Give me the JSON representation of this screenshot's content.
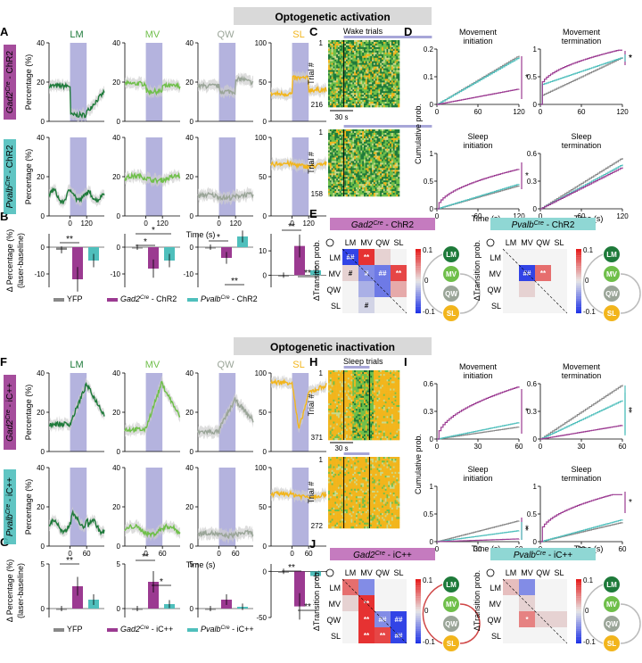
{
  "sections": {
    "activation": "Optogenetic activation",
    "inactivation": "Optogenetic inactivation"
  },
  "panel_letters": [
    "A",
    "B",
    "C",
    "D",
    "E",
    "F",
    "G",
    "H",
    "I",
    "J"
  ],
  "state_labels": [
    "LM",
    "MV",
    "QW",
    "SL"
  ],
  "colors": {
    "LM": "#1e7a3a",
    "MV": "#6fbf4a",
    "QW": "#9aa598",
    "SL": "#f2b51c",
    "gad2": "#9b3a91",
    "pvalb": "#4fbfbc",
    "yfp": "#888888",
    "laser": "#a7a6d8",
    "header_bg": "#d9d9d9"
  },
  "activation": {
    "rows": [
      {
        "label_html": "Gad2-ChR2",
        "prefix": "Gad2",
        "sup": "Cre",
        "suffix": " - ChR2",
        "color": "#9b3a91"
      },
      {
        "label_html": "Pvalb-ChR2",
        "prefix": "Pvalb",
        "sup": "Cre",
        "suffix": " - ChR2",
        "color": "#4fbfbc"
      }
    ],
    "ylabel": "Percentage (%)",
    "xlabel": "Time (s)",
    "xticks": [
      "0",
      "120"
    ],
    "yticks": [
      [
        "0",
        "20",
        "40"
      ],
      [
        "0",
        "20",
        "40"
      ],
      [
        "0",
        "20",
        "40"
      ],
      [
        "0",
        "50",
        "100"
      ]
    ],
    "bar_ylabel_1": "Δ Percentage (%)",
    "bar_ylabel_2": "(laser-baseline)",
    "bar_yticks": [
      [
        "0",
        "-10"
      ],
      [
        "0",
        "-10"
      ],
      [
        "0",
        "-10"
      ],
      [
        "0",
        "10"
      ]
    ],
    "legend": [
      {
        "name": "YFP"
      },
      {
        "prefix": "Gad2",
        "sup": "Cre",
        "suffix": " - ChR2"
      },
      {
        "prefix": "Pvalb",
        "sup": "Cre",
        "suffix": " - ChR2"
      }
    ],
    "chart_data": {
      "type": "bar",
      "categories": [
        "LM",
        "MV",
        "QW",
        "SL"
      ],
      "series": [
        {
          "name": "YFP",
          "values": [
            -1,
            0,
            0,
            0
          ]
        },
        {
          "name": "Gad2Cre - ChR2",
          "values": [
            -12,
            -8,
            -4,
            12
          ]
        },
        {
          "name": "PvalbCre - ChR2",
          "values": [
            -5,
            -5,
            4,
            2
          ]
        }
      ]
    },
    "wake_title": "Wake trials",
    "trial_label": "Trial #",
    "trial_counts": [
      "216",
      "158"
    ],
    "trial_start": "1",
    "scalebar": "30 s",
    "cdf_titles": [
      "Movement\ninitiation",
      "Movement\ntermination",
      "Sleep\ninitiation",
      "Sleep\ntermination"
    ],
    "cdf_ylabel": "Cumulative prob.",
    "cdf_xticks": [
      "0",
      "60",
      "120"
    ],
    "cdf_yticks": [
      [
        "0",
        "0.1",
        "0.2"
      ],
      [
        "0",
        "0.5",
        "1"
      ],
      [
        "0",
        "0.5",
        "1"
      ],
      [
        "0",
        "0.3",
        "0.6"
      ]
    ],
    "matrix_titles": [
      {
        "prefix": "Gad2",
        "sup": "Cre",
        "suffix": " - ChR2",
        "bg": "#c57bbf"
      },
      {
        "prefix": "Pvalb",
        "sup": "Cre",
        "suffix": " - ChR2",
        "bg": "#8fd7d4"
      }
    ],
    "matrix_ylabel": "ΔTransition prob.",
    "colorbar_ticks": [
      "0.1",
      "0",
      "-0.1"
    ]
  },
  "inactivation": {
    "rows": [
      {
        "prefix": "Gad2",
        "sup": "Cre",
        "suffix": " - iC++",
        "color": "#9b3a91"
      },
      {
        "prefix": "Pvalb",
        "sup": "Cre",
        "suffix": " - iC++",
        "color": "#4fbfbc"
      }
    ],
    "xticks": [
      "0",
      "60"
    ],
    "yticks": [
      [
        "0",
        "20",
        "40"
      ],
      [
        "0",
        "20",
        "40"
      ],
      [
        "0",
        "20",
        "40"
      ],
      [
        "0",
        "50",
        "100"
      ]
    ],
    "bar_yticks": [
      [
        "0",
        "5"
      ],
      [
        "0",
        "5"
      ],
      [
        "0",
        "5"
      ],
      [
        "0",
        "-50"
      ]
    ],
    "legend": [
      {
        "name": "YFP"
      },
      {
        "prefix": "Gad2",
        "sup": "Cre",
        "suffix": " - iC++"
      },
      {
        "prefix": "Pvalb",
        "sup": "Cre",
        "suffix": " - iC++"
      }
    ],
    "chart_data": {
      "type": "bar",
      "categories": [
        "LM",
        "MV",
        "QW",
        "SL"
      ],
      "series": [
        {
          "name": "YFP",
          "values": [
            0,
            0,
            0,
            0
          ]
        },
        {
          "name": "Gad2Cre - iC++",
          "values": [
            2.5,
            3,
            1,
            -38
          ]
        },
        {
          "name": "PvalbCre - iC++",
          "values": [
            1,
            0.5,
            0.2,
            -5
          ]
        }
      ]
    },
    "sleep_title": "Sleep trials",
    "trial_counts": [
      "371",
      "272"
    ],
    "cdf_xticks": [
      "0",
      "30",
      "60"
    ],
    "cdf_yticks": [
      [
        "0",
        "0.3",
        "0.6"
      ],
      [
        "0",
        "0.3",
        "0.6"
      ],
      [
        "0",
        "0.5",
        "1"
      ],
      [
        "0",
        "0.5",
        "1"
      ]
    ],
    "matrix_titles": [
      {
        "prefix": "Gad2",
        "sup": "Cre",
        "suffix": " - iC++",
        "bg": "#c57bbf"
      },
      {
        "prefix": "Pvalb",
        "sup": "Cre",
        "suffix": " - iC++",
        "bg": "#8fd7d4"
      }
    ]
  },
  "significance": {
    "double": "**",
    "single": "*",
    "hash": "#",
    "double_hash": "##"
  }
}
